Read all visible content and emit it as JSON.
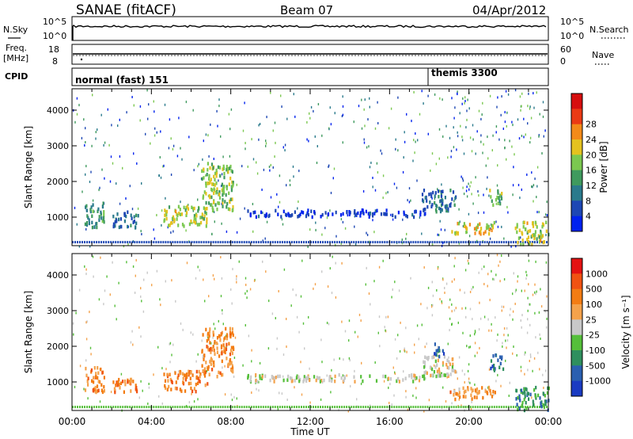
{
  "header": {
    "title": "SANAE (fitACF)",
    "beam": "Beam 07",
    "date": "04/Apr/2012"
  },
  "strips": {
    "nsky_label": "N.Sky",
    "nsky_ticks": [
      "10^5",
      "10^0"
    ],
    "nsearch_label": "N.Search",
    "nsearch_ticks": [
      "10^5",
      "10^0"
    ],
    "freq_label_1": "Freq.",
    "freq_label_2": "[MHz]",
    "freq_ticks": [
      "18",
      "8"
    ],
    "nave_label": "Nave",
    "nave_ticks": [
      "60",
      "0"
    ],
    "cpid_label": "CPID",
    "cpid_modes": [
      "normal (fast) 151",
      "themis 3300"
    ]
  },
  "chart_data": [
    {
      "type": "heatmap",
      "name": "power-panel",
      "ylabel": "Slant Range [km]",
      "y_ticks": [
        "1000",
        "2000",
        "3000",
        "4000"
      ],
      "ylim": [
        200,
        4600
      ],
      "xlim_hours": [
        0,
        24
      ],
      "colorbar": {
        "label": "Power [dB]",
        "ticks": [
          "4",
          "8",
          "12",
          "16",
          "20",
          "24",
          "28"
        ],
        "colors": [
          "#0022ee",
          "#1d47b4",
          "#2a7a8c",
          "#3f9a5e",
          "#7bc850",
          "#e4c21f",
          "#f38a19",
          "#ea3a14",
          "#d60e0e"
        ]
      },
      "regions": [
        {
          "t": [
            0.6,
            1.6
          ],
          "r": [
            750,
            1450
          ],
          "level": 0.35
        },
        {
          "t": [
            2.0,
            3.3
          ],
          "r": [
            750,
            1200
          ],
          "level": 0.25
        },
        {
          "t": [
            4.6,
            6.8
          ],
          "r": [
            780,
            1350
          ],
          "level": 0.55
        },
        {
          "t": [
            6.5,
            8.1
          ],
          "r": [
            1200,
            2550
          ],
          "level": 0.5
        },
        {
          "t": [
            8.8,
            17.8
          ],
          "r": [
            1050,
            1250
          ],
          "level": 0.1
        },
        {
          "t": [
            17.6,
            19.3
          ],
          "r": [
            1200,
            1800
          ],
          "level": 0.25
        },
        {
          "t": [
            19.0,
            21.3
          ],
          "r": [
            560,
            900
          ],
          "level": 0.6
        },
        {
          "t": [
            21.0,
            21.7
          ],
          "r": [
            1350,
            1800
          ],
          "level": 0.45
        },
        {
          "t": [
            22.3,
            24.0
          ],
          "r": [
            250,
            900
          ],
          "level": 0.55
        }
      ]
    },
    {
      "type": "heatmap",
      "name": "velocity-panel",
      "ylabel": "Slant Range [km]",
      "y_ticks": [
        "1000",
        "2000",
        "3000",
        "4000"
      ],
      "ylim": [
        200,
        4600
      ],
      "xlim_hours": [
        0,
        24
      ],
      "colorbar": {
        "label": "Velocity [m s⁻¹]",
        "ticks": [
          "1000",
          "500",
          "100",
          "25",
          "-25",
          "-100",
          "-500",
          "-1000"
        ],
        "colors": [
          "#1a3bc2",
          "#2a5fb0",
          "#2f8f5e",
          "#55bf3a",
          "#c8c8c8",
          "#f4a24b",
          "#f37c13",
          "#f05212",
          "#e41212"
        ]
      },
      "regions": [
        {
          "t": [
            0.6,
            1.6
          ],
          "r": [
            750,
            1450
          ],
          "level": 0.72
        },
        {
          "t": [
            2.0,
            3.3
          ],
          "r": [
            750,
            1200
          ],
          "level": 0.72
        },
        {
          "t": [
            4.6,
            6.8
          ],
          "r": [
            780,
            1350
          ],
          "level": 0.72
        },
        {
          "t": [
            6.5,
            8.1
          ],
          "r": [
            1200,
            2550
          ],
          "level": 0.68
        },
        {
          "t": [
            8.8,
            17.8
          ],
          "r": [
            1050,
            1250
          ],
          "level": 0.5
        },
        {
          "t": [
            17.6,
            19.3
          ],
          "r": [
            1200,
            1800
          ],
          "level": 0.5
        },
        {
          "t": [
            18.2,
            18.7
          ],
          "r": [
            1750,
            2150
          ],
          "level": 0.15
        },
        {
          "t": [
            19.0,
            21.3
          ],
          "r": [
            560,
            900
          ],
          "level": 0.66
        },
        {
          "t": [
            21.0,
            21.7
          ],
          "r": [
            1350,
            1800
          ],
          "level": 0.2
        },
        {
          "t": [
            22.3,
            24.0
          ],
          "r": [
            250,
            900
          ],
          "level": 0.25
        }
      ]
    }
  ],
  "x_axis": {
    "ticks": [
      "00:00",
      "04:00",
      "08:00",
      "12:00",
      "16:00",
      "20:00",
      "00:00"
    ],
    "label": "Time UT"
  }
}
